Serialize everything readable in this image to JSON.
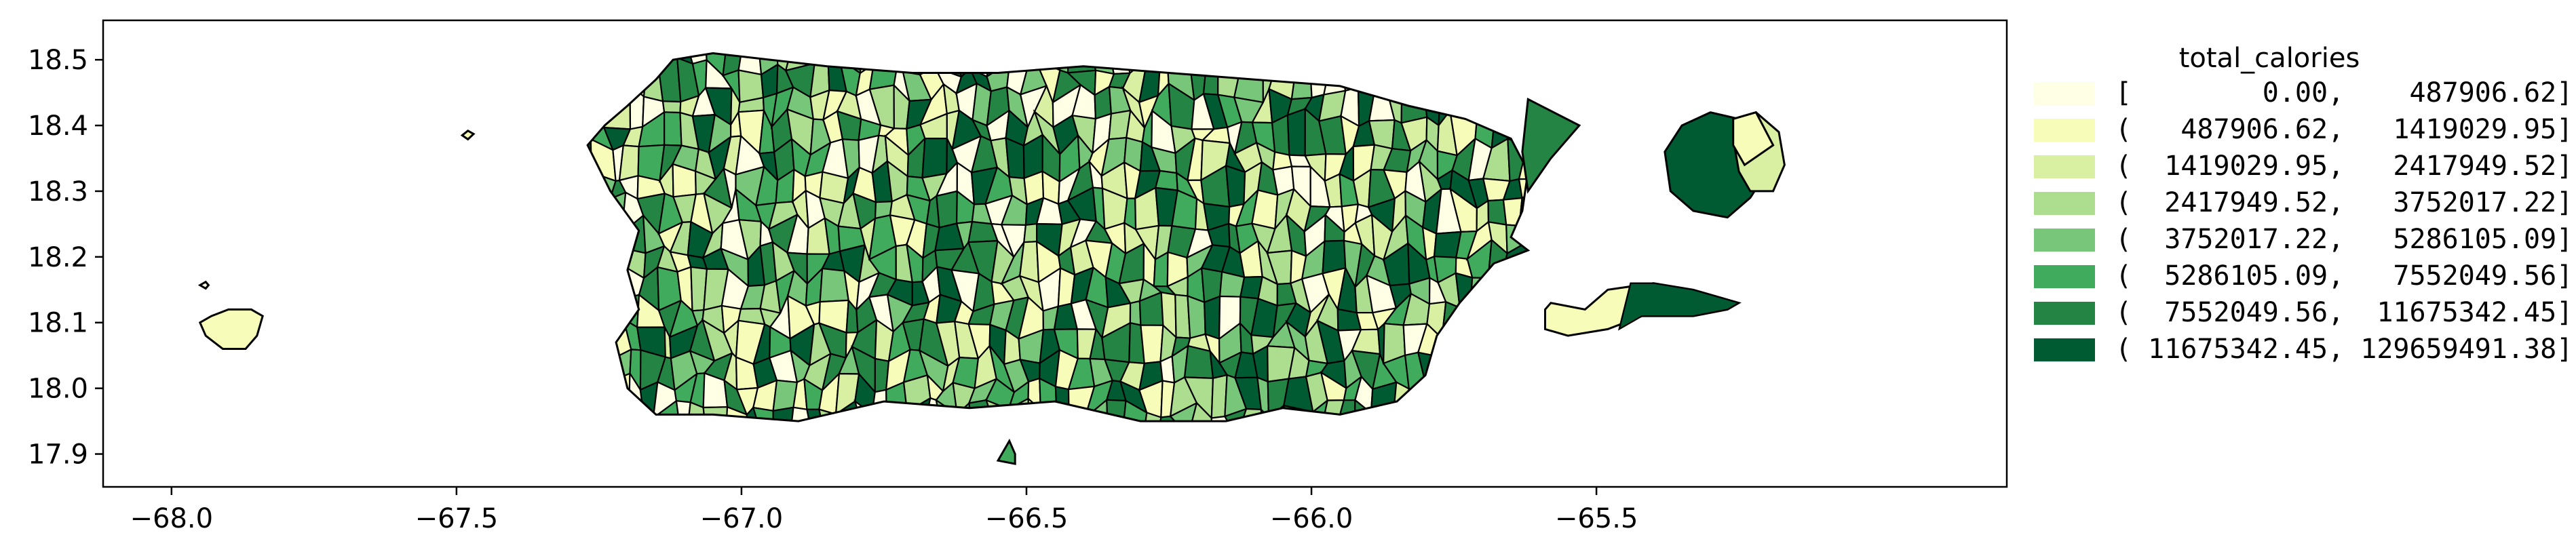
{
  "map": {
    "xlim": [
      -68.12,
      -64.78
    ],
    "ylim": [
      17.85,
      18.56
    ],
    "x_ticks": [
      {
        "value": -68.0,
        "label": "−68.0"
      },
      {
        "value": -67.5,
        "label": "−67.5"
      },
      {
        "value": -67.0,
        "label": "−67.0"
      },
      {
        "value": -66.5,
        "label": "−66.5"
      },
      {
        "value": -66.0,
        "label": "−66.0"
      },
      {
        "value": -65.5,
        "label": "−65.5"
      }
    ],
    "y_ticks": [
      {
        "value": 17.9,
        "label": "17.9"
      },
      {
        "value": 18.0,
        "label": "18.0"
      },
      {
        "value": 18.1,
        "label": "18.1"
      },
      {
        "value": 18.2,
        "label": "18.2"
      },
      {
        "value": 18.3,
        "label": "18.3"
      },
      {
        "value": 18.4,
        "label": "18.4"
      },
      {
        "value": 18.5,
        "label": "18.5"
      }
    ],
    "edge_color": "#000000",
    "background": "#ffffff"
  },
  "legend": {
    "title": "total_calories",
    "placement": "right",
    "entries": [
      {
        "label": "[        0.00,    487906.62]",
        "color": "#ffffe5"
      },
      {
        "label": "(   487906.62,   1419029.95]",
        "color": "#f7fcb9"
      },
      {
        "label": "(  1419029.95,   2417949.52]",
        "color": "#d9f0a3"
      },
      {
        "label": "(  2417949.52,   3752017.22]",
        "color": "#addd8e"
      },
      {
        "label": "(  3752017.22,   5286105.09]",
        "color": "#78c679"
      },
      {
        "label": "(  5286105.09,   7552049.56]",
        "color": "#41ab5d"
      },
      {
        "label": "(  7552049.56,  11675342.45]",
        "color": "#238443"
      },
      {
        "label": "( 11675342.45, 129659491.38]",
        "color": "#005a32"
      }
    ]
  }
}
